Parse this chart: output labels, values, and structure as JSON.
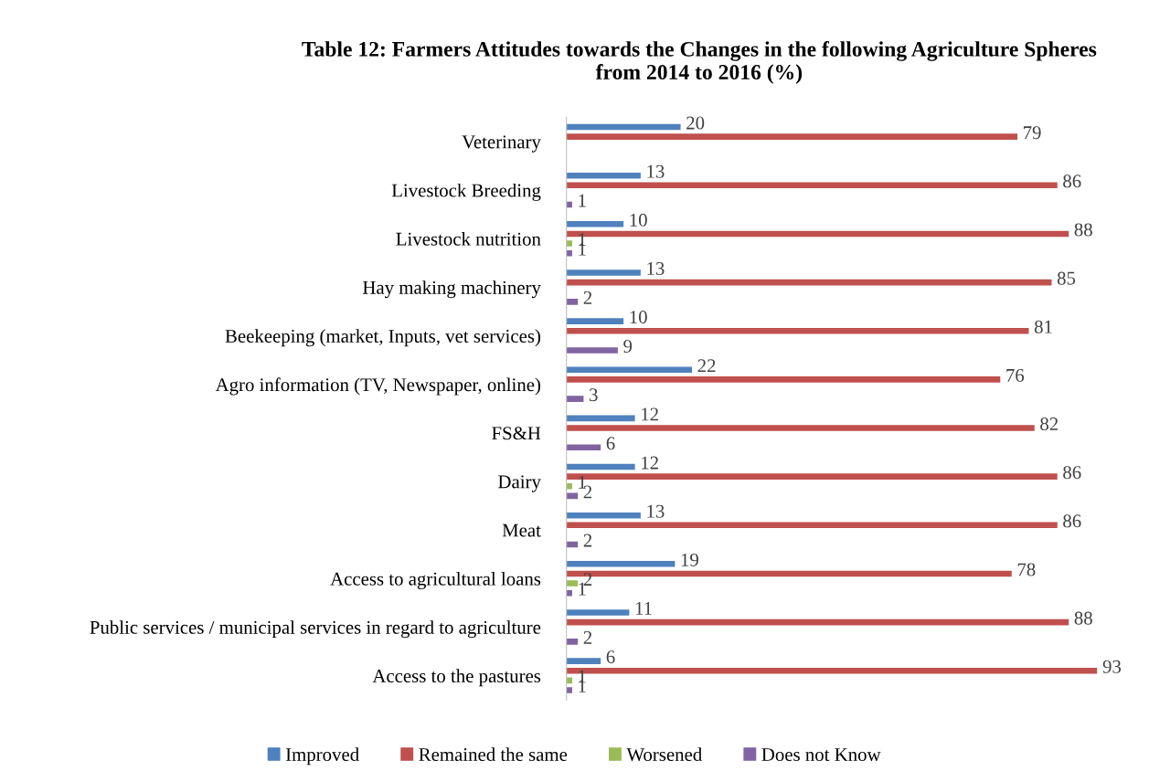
{
  "chart_data": {
    "type": "bar",
    "orientation": "horizontal",
    "title": "Table 12: Farmers Attitudes towards the Changes in the following Agriculture Spheres\nfrom 2014 to 2016 (%)",
    "categories": [
      "Veterinary",
      "Livestock Breeding",
      "Livestock nutrition",
      "Hay making machinery",
      "Beekeeping (market, Inputs, vet services)",
      "Agro information (TV, Newspaper, online)",
      "FS&H",
      "Dairy",
      "Meat",
      "Access to agricultural loans",
      "Public services / municipal services in regard to agriculture",
      "Access to the pastures"
    ],
    "series": [
      {
        "name": "Improved",
        "color": "#4f81bd",
        "values": [
          20,
          13,
          10,
          13,
          10,
          22,
          12,
          12,
          13,
          19,
          11,
          6
        ]
      },
      {
        "name": "Remained the same",
        "color": "#c0504d",
        "values": [
          79,
          86,
          88,
          85,
          81,
          76,
          82,
          86,
          86,
          78,
          88,
          93
        ]
      },
      {
        "name": "Worsened",
        "color": "#9bbb59",
        "values": [
          null,
          null,
          1,
          null,
          null,
          null,
          null,
          1,
          null,
          2,
          null,
          1
        ]
      },
      {
        "name": "Does not Know",
        "color": "#8064a2",
        "values": [
          null,
          1,
          1,
          2,
          9,
          3,
          6,
          2,
          2,
          1,
          2,
          1
        ]
      }
    ],
    "data_labels": true,
    "legend": "bottom",
    "grid": false
  }
}
